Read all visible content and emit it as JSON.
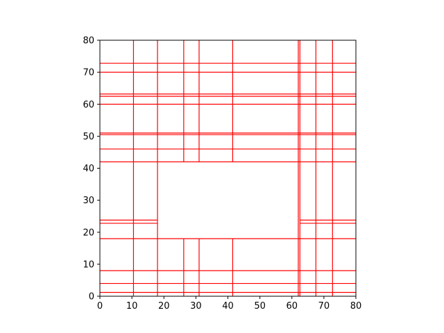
{
  "chart_data": {
    "type": "line",
    "title": "",
    "xlabel": "",
    "ylabel": "",
    "xlim": [
      0,
      80
    ],
    "ylim": [
      0,
      80
    ],
    "x_ticks": [
      "0",
      "10",
      "20",
      "30",
      "40",
      "50",
      "60",
      "70",
      "80"
    ],
    "y_ticks": [
      "0",
      "10",
      "20",
      "30",
      "40",
      "50",
      "60",
      "70",
      "80"
    ],
    "grid": false,
    "legend": "none",
    "line_color": "#ff0000",
    "series": [
      {
        "segments": [
          {
            "x": [
              10.5,
              10.5
            ],
            "y": [
              0,
              80
            ]
          },
          {
            "x": [
              18,
              18
            ],
            "y": [
              0,
              80
            ]
          },
          {
            "x": [
              26.2,
              26.2
            ],
            "y": [
              0,
              18
            ]
          },
          {
            "x": [
              26.2,
              26.2
            ],
            "y": [
              42,
              80
            ]
          },
          {
            "x": [
              31,
              31
            ],
            "y": [
              0,
              18
            ]
          },
          {
            "x": [
              31,
              31
            ],
            "y": [
              42,
              80
            ]
          },
          {
            "x": [
              41.5,
              41.5
            ],
            "y": [
              0,
              18
            ]
          },
          {
            "x": [
              41.5,
              41.5
            ],
            "y": [
              42,
              80
            ]
          },
          {
            "x": [
              62,
              62
            ],
            "y": [
              0,
              80
            ]
          },
          {
            "x": [
              62.5,
              62.5
            ],
            "y": [
              0,
              80
            ]
          },
          {
            "x": [
              67.5,
              67.5
            ],
            "y": [
              0,
              80
            ]
          },
          {
            "x": [
              72.7,
              72.7
            ],
            "y": [
              0,
              80
            ]
          },
          {
            "x": [
              0,
              80
            ],
            "y": [
              1.2,
              1.2
            ]
          },
          {
            "x": [
              0,
              80
            ],
            "y": [
              4,
              4
            ]
          },
          {
            "x": [
              0,
              80
            ],
            "y": [
              8,
              8
            ]
          },
          {
            "x": [
              0,
              80
            ],
            "y": [
              18,
              18
            ]
          },
          {
            "x": [
              0,
              18
            ],
            "y": [
              22.8,
              22.8
            ]
          },
          {
            "x": [
              62.5,
              80
            ],
            "y": [
              22.8,
              22.8
            ]
          },
          {
            "x": [
              0,
              18
            ],
            "y": [
              23.8,
              23.8
            ]
          },
          {
            "x": [
              62.5,
              80
            ],
            "y": [
              23.8,
              23.8
            ]
          },
          {
            "x": [
              0,
              80
            ],
            "y": [
              42,
              42
            ]
          },
          {
            "x": [
              0,
              80
            ],
            "y": [
              46,
              46
            ]
          },
          {
            "x": [
              0,
              80
            ],
            "y": [
              50.5,
              50.5
            ]
          },
          {
            "x": [
              0,
              80
            ],
            "y": [
              51,
              51
            ]
          },
          {
            "x": [
              0,
              80
            ],
            "y": [
              60,
              60
            ]
          },
          {
            "x": [
              0,
              80
            ],
            "y": [
              62.5,
              62.5
            ]
          },
          {
            "x": [
              0,
              80
            ],
            "y": [
              63.2,
              63.2
            ]
          },
          {
            "x": [
              0,
              80
            ],
            "y": [
              70,
              70
            ]
          },
          {
            "x": [
              0,
              80
            ],
            "y": [
              72.8,
              72.8
            ]
          }
        ]
      }
    ]
  }
}
